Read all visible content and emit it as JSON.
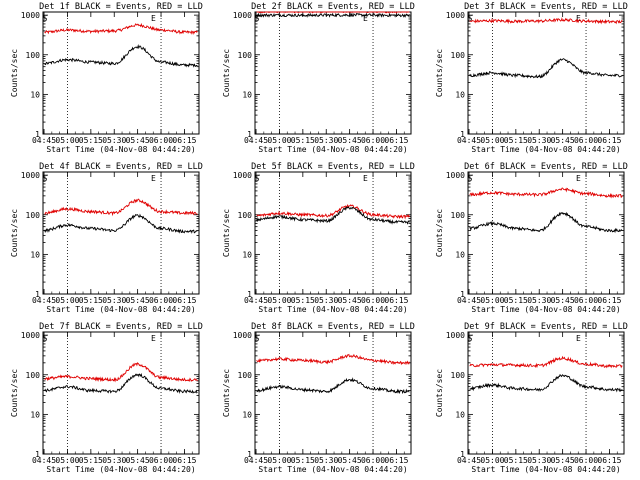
{
  "colors": {
    "events": "#000000",
    "lld": "#e00000",
    "axis": "#000000",
    "background": "#ffffff"
  },
  "chart_data": [
    {
      "type": "line",
      "title": "Det 1f BLACK = Events, RED = LLD",
      "xlabel": "Start Time (04-Nov-08 04:44:20)",
      "ylabel": "Counts/sec",
      "xticks": [
        "04:45",
        "05:00",
        "05:15",
        "05:30",
        "05:45",
        "06:00",
        "06:15"
      ],
      "yticks": [
        "1",
        "10",
        "100",
        "1000"
      ],
      "ylim": [
        1,
        1200
      ],
      "yscale": "log",
      "vlines": [
        "05:00",
        "06:00"
      ],
      "markers": {
        "S": "04:46",
        "E": "06:00"
      },
      "series": [
        {
          "name": "LLD",
          "color": "red",
          "x": [
            "04:45",
            "05:00",
            "05:15",
            "05:30",
            "05:45",
            "06:00",
            "06:15"
          ],
          "values": [
            370,
            420,
            390,
            400,
            560,
            420,
            370
          ]
        },
        {
          "name": "Events",
          "color": "black",
          "x": [
            "04:45",
            "05:00",
            "05:15",
            "05:30",
            "05:45",
            "06:00",
            "06:15"
          ],
          "values": [
            60,
            75,
            65,
            60,
            160,
            65,
            55
          ]
        }
      ]
    },
    {
      "type": "line",
      "title": "Det 2f BLACK = Events, RED = LLD",
      "xlabel": "Start Time (04-Nov-08 04:44:20)",
      "ylabel": "Counts/sec",
      "xticks": [
        "04:45",
        "05:00",
        "05:15",
        "05:30",
        "05:45",
        "06:00",
        "06:15"
      ],
      "yticks": [
        "1",
        "10",
        "100",
        "1000"
      ],
      "ylim": [
        1,
        1200
      ],
      "yscale": "log",
      "vlines": [
        "05:00",
        "06:00"
      ],
      "markers": {
        "S": "04:46",
        "E": "06:00"
      },
      "series": [
        {
          "name": "LLD",
          "color": "red",
          "x": [
            "04:45",
            "05:00",
            "05:15",
            "05:30",
            "05:45",
            "06:00",
            "06:15"
          ],
          "values": [
            1250,
            1250,
            1240,
            1250,
            1260,
            1250,
            1240
          ]
        },
        {
          "name": "Events",
          "color": "black",
          "x": [
            "04:45",
            "05:00",
            "05:15",
            "05:30",
            "05:45",
            "06:00",
            "06:15"
          ],
          "values": [
            1000,
            1000,
            990,
            1000,
            1010,
            1000,
            990
          ]
        }
      ]
    },
    {
      "type": "line",
      "title": "Det 3f BLACK = Events, RED = LLD",
      "xlabel": "Start Time (04-Nov-08 04:44:20)",
      "ylabel": "Counts/sec",
      "xticks": [
        "04:45",
        "05:00",
        "05:15",
        "05:30",
        "05:45",
        "06:00",
        "06:15"
      ],
      "yticks": [
        "1",
        "10",
        "100",
        "1000"
      ],
      "ylim": [
        1,
        1200
      ],
      "yscale": "log",
      "vlines": [
        "05:00",
        "06:00"
      ],
      "markers": {
        "S": "04:46",
        "E": "06:00"
      },
      "series": [
        {
          "name": "LLD",
          "color": "red",
          "x": [
            "04:45",
            "05:00",
            "05:15",
            "05:30",
            "05:45",
            "06:00",
            "06:15"
          ],
          "values": [
            700,
            720,
            700,
            710,
            760,
            710,
            680
          ]
        },
        {
          "name": "Events",
          "color": "black",
          "x": [
            "04:45",
            "05:00",
            "05:15",
            "05:30",
            "05:45",
            "06:00",
            "06:15"
          ],
          "values": [
            30,
            35,
            30,
            28,
            75,
            35,
            30
          ]
        }
      ]
    },
    {
      "type": "line",
      "title": "Det 4f BLACK = Events, RED = LLD",
      "xlabel": "Start Time (04-Nov-08 04:44:20)",
      "ylabel": "Counts/sec",
      "xticks": [
        "04:45",
        "05:00",
        "05:15",
        "05:30",
        "05:45",
        "06:00",
        "06:15"
      ],
      "yticks": [
        "1",
        "10",
        "100",
        "1000"
      ],
      "ylim": [
        1,
        1200
      ],
      "yscale": "log",
      "vlines": [
        "05:00",
        "06:00"
      ],
      "markers": {
        "S": "04:46",
        "E": "06:00"
      },
      "series": [
        {
          "name": "LLD",
          "color": "red",
          "x": [
            "04:45",
            "05:00",
            "05:15",
            "05:30",
            "05:45",
            "06:00",
            "06:15"
          ],
          "values": [
            110,
            140,
            120,
            110,
            230,
            120,
            110
          ]
        },
        {
          "name": "Events",
          "color": "black",
          "x": [
            "04:45",
            "05:00",
            "05:15",
            "05:30",
            "05:45",
            "06:00",
            "06:15"
          ],
          "values": [
            40,
            55,
            45,
            40,
            95,
            45,
            38
          ]
        }
      ]
    },
    {
      "type": "line",
      "title": "Det 5f BLACK = Events, RED = LLD",
      "xlabel": "Start Time (04-Nov-08 04:44:20)",
      "ylabel": "Counts/sec",
      "xticks": [
        "04:45",
        "05:00",
        "05:15",
        "05:30",
        "05:45",
        "06:00",
        "06:15"
      ],
      "yticks": [
        "1",
        "10",
        "100",
        "1000"
      ],
      "ylim": [
        1,
        1200
      ],
      "yscale": "log",
      "vlines": [
        "05:00",
        "06:00"
      ],
      "markers": {
        "S": "04:46",
        "E": "06:00"
      },
      "series": [
        {
          "name": "LLD",
          "color": "red",
          "x": [
            "04:45",
            "05:00",
            "05:15",
            "05:30",
            "05:45",
            "06:00",
            "06:15"
          ],
          "values": [
            95,
            110,
            100,
            95,
            165,
            100,
            90
          ]
        },
        {
          "name": "Events",
          "color": "black",
          "x": [
            "04:45",
            "05:00",
            "05:15",
            "05:30",
            "05:45",
            "06:00",
            "06:15"
          ],
          "values": [
            75,
            90,
            75,
            70,
            150,
            75,
            65
          ]
        }
      ]
    },
    {
      "type": "line",
      "title": "Det 6f BLACK = Events, RED = LLD",
      "xlabel": "Start Time (04-Nov-08 04:44:20)",
      "ylabel": "Counts/sec",
      "xticks": [
        "04:45",
        "05:00",
        "05:15",
        "05:30",
        "05:45",
        "06:00",
        "06:15"
      ],
      "yticks": [
        "1",
        "10",
        "100",
        "1000"
      ],
      "ylim": [
        1,
        1200
      ],
      "yscale": "log",
      "vlines": [
        "05:00",
        "06:00"
      ],
      "markers": {
        "S": "04:46",
        "E": "06:00"
      },
      "series": [
        {
          "name": "LLD",
          "color": "red",
          "x": [
            "04:45",
            "05:00",
            "05:15",
            "05:30",
            "05:45",
            "06:00",
            "06:15"
          ],
          "values": [
            320,
            360,
            330,
            320,
            440,
            340,
            300
          ]
        },
        {
          "name": "Events",
          "color": "black",
          "x": [
            "04:45",
            "05:00",
            "05:15",
            "05:30",
            "05:45",
            "06:00",
            "06:15"
          ],
          "values": [
            45,
            60,
            45,
            40,
            110,
            50,
            40
          ]
        }
      ]
    },
    {
      "type": "line",
      "title": "Det 7f BLACK = Events, RED = LLD",
      "xlabel": "Start Time (04-Nov-08 04:44:20)",
      "ylabel": "Counts/sec",
      "xticks": [
        "04:45",
        "05:00",
        "05:15",
        "05:30",
        "05:45",
        "06:00",
        "06:15"
      ],
      "yticks": [
        "1",
        "10",
        "100",
        "1000"
      ],
      "ylim": [
        1,
        1200
      ],
      "yscale": "log",
      "vlines": [
        "05:00",
        "06:00"
      ],
      "markers": {
        "S": "04:46",
        "E": "06:00"
      },
      "series": [
        {
          "name": "LLD",
          "color": "red",
          "x": [
            "04:45",
            "05:00",
            "05:15",
            "05:30",
            "05:45",
            "06:00",
            "06:15"
          ],
          "values": [
            80,
            90,
            80,
            75,
            185,
            85,
            75
          ]
        },
        {
          "name": "Events",
          "color": "black",
          "x": [
            "04:45",
            "05:00",
            "05:15",
            "05:30",
            "05:45",
            "06:00",
            "06:15"
          ],
          "values": [
            40,
            50,
            40,
            38,
            100,
            45,
            38
          ]
        }
      ]
    },
    {
      "type": "line",
      "title": "Det 8f BLACK = Events, RED = LLD",
      "xlabel": "Start Time (04-Nov-08 04:44:20)",
      "ylabel": "Counts/sec",
      "xticks": [
        "04:45",
        "05:00",
        "05:15",
        "05:30",
        "05:45",
        "06:00",
        "06:15"
      ],
      "yticks": [
        "1",
        "10",
        "100",
        "1000"
      ],
      "ylim": [
        1,
        1200
      ],
      "yscale": "log",
      "vlines": [
        "05:00",
        "06:00"
      ],
      "markers": {
        "S": "04:46",
        "E": "06:00"
      },
      "series": [
        {
          "name": "LLD",
          "color": "red",
          "x": [
            "04:45",
            "05:00",
            "05:15",
            "05:30",
            "05:45",
            "06:00",
            "06:15"
          ],
          "values": [
            220,
            250,
            230,
            210,
            300,
            230,
            200
          ]
        },
        {
          "name": "Events",
          "color": "black",
          "x": [
            "04:45",
            "05:00",
            "05:15",
            "05:30",
            "05:45",
            "06:00",
            "06:15"
          ],
          "values": [
            40,
            50,
            42,
            38,
            75,
            45,
            38
          ]
        }
      ]
    },
    {
      "type": "line",
      "title": "Det 9f BLACK = Events, RED = LLD",
      "xlabel": "Start Time (04-Nov-08 04:44:20)",
      "ylabel": "Counts/sec",
      "xticks": [
        "04:45",
        "05:00",
        "05:15",
        "05:30",
        "05:45",
        "06:00",
        "06:15"
      ],
      "yticks": [
        "1",
        "10",
        "100",
        "1000"
      ],
      "ylim": [
        1,
        1200
      ],
      "yscale": "log",
      "vlines": [
        "05:00",
        "06:00"
      ],
      "markers": {
        "S": "04:46",
        "E": "06:00"
      },
      "series": [
        {
          "name": "LLD",
          "color": "red",
          "x": [
            "04:45",
            "05:00",
            "05:15",
            "05:30",
            "05:45",
            "06:00",
            "06:15"
          ],
          "values": [
            170,
            180,
            175,
            170,
            260,
            185,
            165
          ]
        },
        {
          "name": "Events",
          "color": "black",
          "x": [
            "04:45",
            "05:00",
            "05:15",
            "05:30",
            "05:45",
            "06:00",
            "06:15"
          ],
          "values": [
            45,
            55,
            45,
            42,
            95,
            50,
            42
          ]
        }
      ]
    }
  ]
}
